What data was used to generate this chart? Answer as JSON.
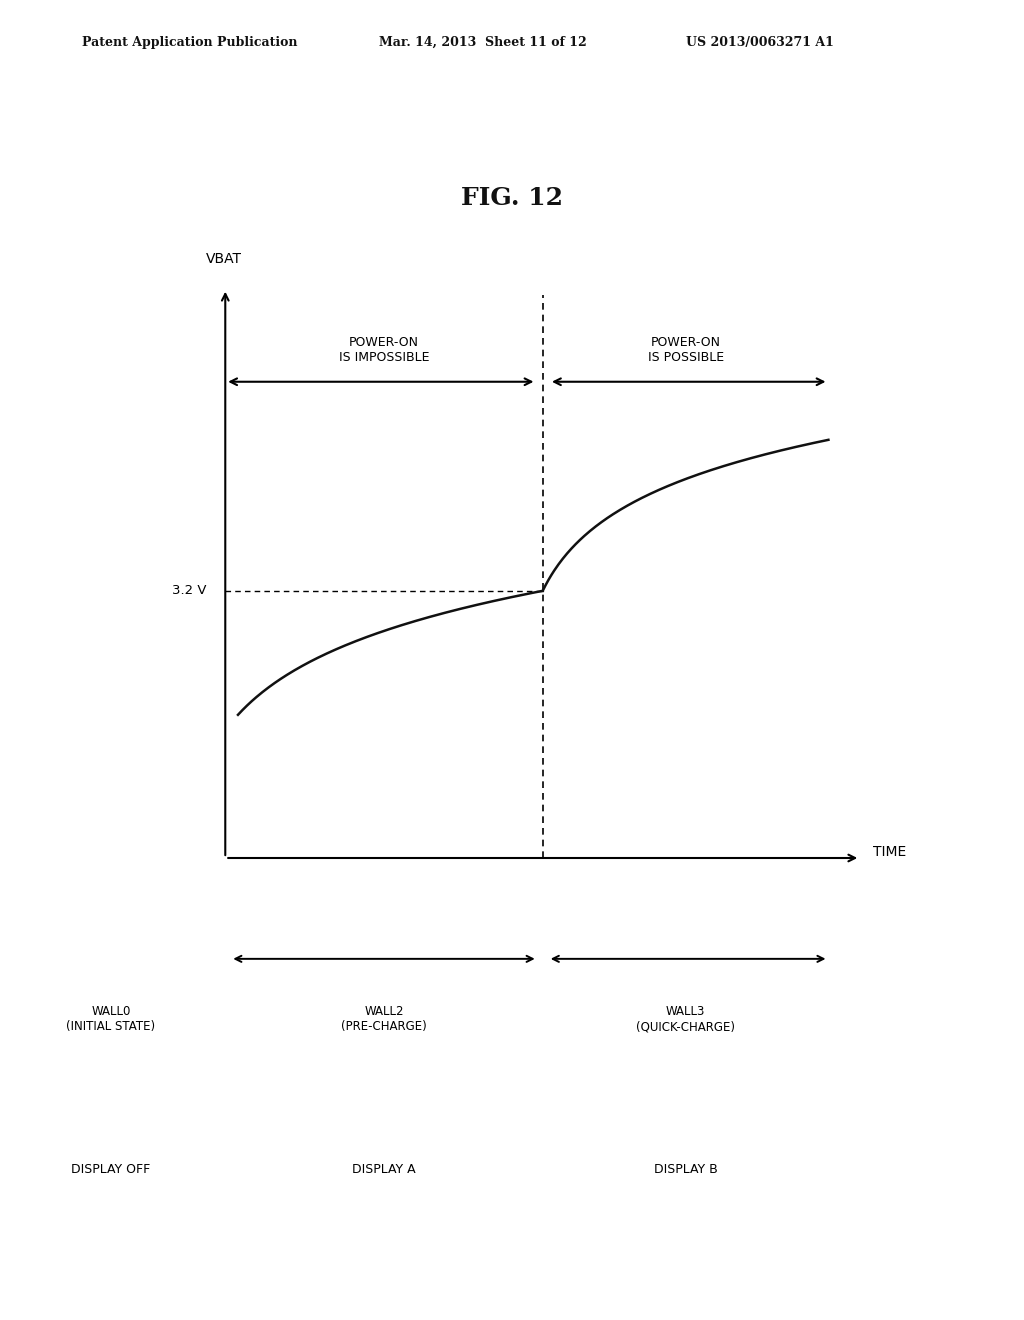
{
  "title": "FIG. 12",
  "header_left": "Patent Application Publication",
  "header_mid": "Mar. 14, 2013  Sheet 11 of 12",
  "header_right": "US 2013/0063271 A1",
  "ylabel": "VBAT",
  "xlabel": "TIME",
  "voltage_label": "3.2 V",
  "bg_color": "#ffffff",
  "line_color": "#000000",
  "curve_color": "#111111",
  "power_on_impossible": "POWER-ON\nIS IMPOSSIBLE",
  "power_on_possible": "POWER-ON\nIS POSSIBLE",
  "wall0_label": "WALL0\n(INITIAL STATE)",
  "wall2_label": "WALL2\n(PRE-CHARGE)",
  "wall3_label": "WALL3\n(QUICK-CHARGE)",
  "display_off": "DISPLAY OFF",
  "display_a": "DISPLAY A",
  "display_b": "DISPLAY B"
}
